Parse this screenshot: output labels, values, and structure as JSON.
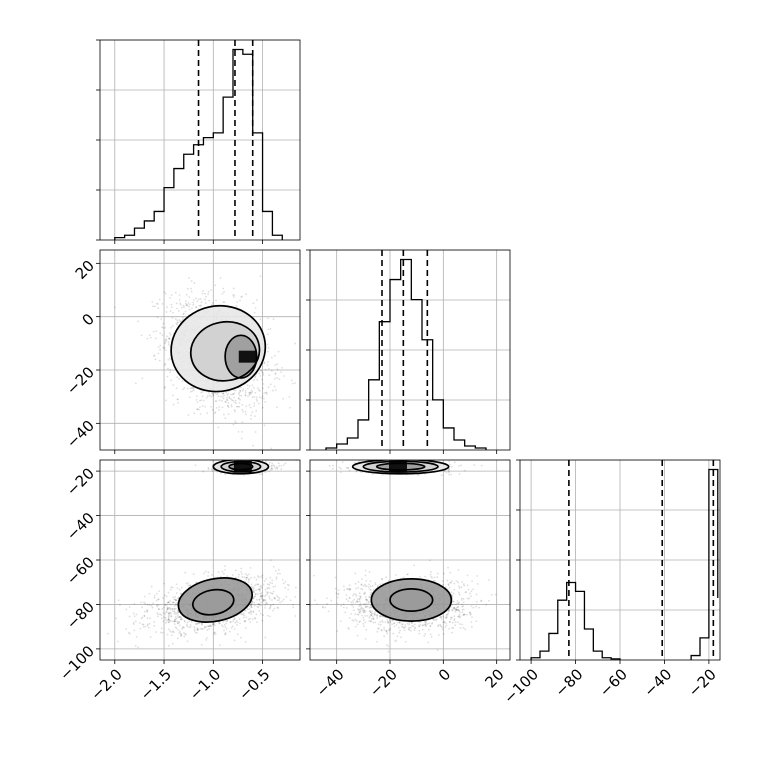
{
  "chart_data": {
    "type": "corner",
    "title": "",
    "parameters": [
      {
        "id": "p1",
        "range": [
          -2.15,
          -0.12
        ],
        "ticks": [
          -2.0,
          -1.5,
          -1.0,
          -0.5
        ],
        "tick_labels": [
          "−2.0",
          "−1.5",
          "−1.0",
          "−0.5"
        ],
        "quantiles": [
          -1.15,
          -0.78,
          -0.6
        ],
        "histogram": {
          "bin_edges": [
            -2.0,
            -1.9,
            -1.8,
            -1.7,
            -1.6,
            -1.5,
            -1.4,
            -1.3,
            -1.2,
            -1.1,
            -1.0,
            -0.9,
            -0.8,
            -0.7,
            -0.6,
            -0.5,
            -0.4,
            -0.3
          ],
          "values": [
            0.01,
            0.02,
            0.05,
            0.08,
            0.12,
            0.22,
            0.3,
            0.36,
            0.4,
            0.43,
            0.45,
            0.6,
            0.8,
            0.78,
            0.45,
            0.12,
            0.02
          ]
        }
      },
      {
        "id": "p2",
        "range": [
          -50,
          25
        ],
        "ticks": [
          -40,
          -20,
          0,
          20
        ],
        "tick_labels": [
          "−40",
          "−20",
          "0",
          "20"
        ],
        "quantiles": [
          -23,
          -15,
          -6
        ],
        "histogram": {
          "bin_edges": [
            -44,
            -40,
            -36,
            -32,
            -28,
            -24,
            -20,
            -16,
            -12,
            -8,
            -4,
            0,
            4,
            8,
            12,
            16
          ],
          "values": [
            0.01,
            0.03,
            0.06,
            0.15,
            0.35,
            0.64,
            0.85,
            0.95,
            0.75,
            0.55,
            0.25,
            0.11,
            0.05,
            0.02,
            0.01
          ]
        }
      },
      {
        "id": "p3",
        "range": [
          -105,
          -15
        ],
        "ticks": [
          -100,
          -80,
          -60,
          -40,
          -20
        ],
        "tick_labels": [
          "−100",
          "−80",
          "−60",
          "−40",
          "−20"
        ],
        "quantiles": [
          -83,
          -41,
          -18
        ],
        "histogram": {
          "bin_edges": [
            -100,
            -96,
            -92,
            -88,
            -84,
            -80,
            -76,
            -72,
            -68,
            -64,
            -60,
            -28,
            -24,
            -20,
            -16
          ],
          "values": [
            0.01,
            0.04,
            0.12,
            0.27,
            0.35,
            0.31,
            0.14,
            0.04,
            0.01,
            0.005,
            null,
            0.02,
            0.1,
            0.86,
            0.28
          ]
        }
      }
    ],
    "panels_2d": [
      {
        "x": "p1",
        "y": "p2",
        "clusters": [
          {
            "cx": -0.95,
            "cy": -14,
            "sx": 0.26,
            "sy": 10.5,
            "rho": -0.3,
            "n": 1800
          }
        ],
        "contours": [
          {
            "cx": -0.95,
            "cy": -12,
            "rx": 0.48,
            "ry": 16,
            "rot": -12
          },
          {
            "cx": -0.88,
            "cy": -13,
            "rx": 0.35,
            "ry": 11,
            "rot": -10
          },
          {
            "cx": -0.72,
            "cy": -15,
            "rx": 0.16,
            "ry": 8,
            "rot": 0
          }
        ],
        "density_peak": {
          "x": -0.65,
          "y": -15
        }
      },
      {
        "x": "p1",
        "y": "p3",
        "clusters": [
          {
            "cx": -0.7,
            "cy": -18,
            "sx": 0.15,
            "sy": 1.3,
            "rho": 0,
            "n": 600
          },
          {
            "cx": -1.0,
            "cy": -80,
            "sx": 0.32,
            "sy": 6,
            "rho": 0.4,
            "n": 1500
          }
        ],
        "contours": [
          {
            "cx": -0.72,
            "cy": -18,
            "rx": 0.28,
            "ry": 3.2,
            "rot": 0
          },
          {
            "cx": -0.72,
            "cy": -18,
            "rx": 0.2,
            "ry": 2.3,
            "rot": 0
          },
          {
            "cx": -0.72,
            "cy": -18,
            "rx": 0.12,
            "ry": 1.4,
            "rot": 0
          },
          {
            "cx": -0.98,
            "cy": -78,
            "rx": 0.38,
            "ry": 9.5,
            "rot": -12
          },
          {
            "cx": -1.0,
            "cy": -79,
            "rx": 0.21,
            "ry": 5.5,
            "rot": -10
          }
        ],
        "density_peak": {
          "x": -0.7,
          "y": -18
        }
      },
      {
        "x": "p2",
        "y": "p3",
        "clusters": [
          {
            "cx": -15,
            "cy": -18,
            "sx": 9,
            "sy": 1.3,
            "rho": 0,
            "n": 600
          },
          {
            "cx": -13,
            "cy": -80,
            "sx": 11,
            "sy": 6,
            "rho": 0,
            "n": 1500
          }
        ],
        "contours": [
          {
            "cx": -16,
            "cy": -18,
            "rx": 18,
            "ry": 3.2,
            "rot": 0
          },
          {
            "cx": -16,
            "cy": -18,
            "rx": 14,
            "ry": 2.4,
            "rot": 0
          },
          {
            "cx": -16,
            "cy": -18,
            "rx": 9,
            "ry": 1.5,
            "rot": 0
          },
          {
            "cx": -12,
            "cy": -78,
            "rx": 15,
            "ry": 9.5,
            "rot": 0
          },
          {
            "cx": -12,
            "cy": -78,
            "rx": 8,
            "ry": 5,
            "rot": 0
          }
        ],
        "density_peak": {
          "x": -17,
          "y": -18
        }
      }
    ],
    "grid": true,
    "legend": "none"
  }
}
